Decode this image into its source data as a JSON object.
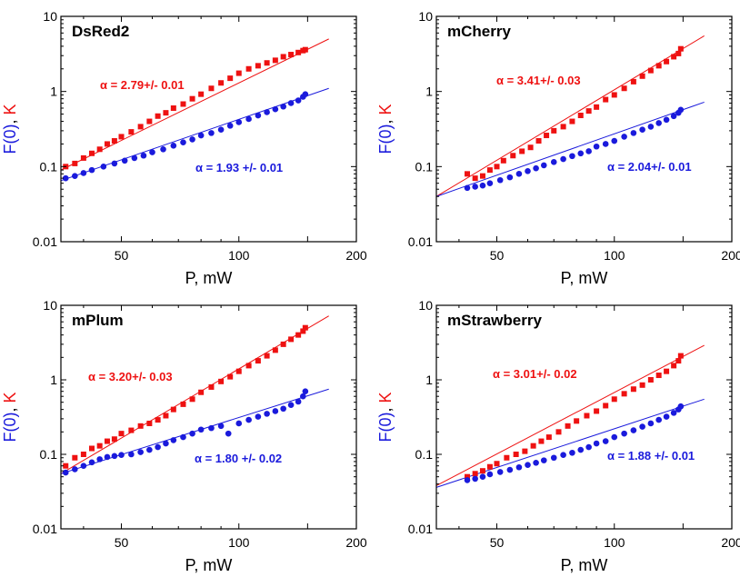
{
  "colors": {
    "k_series": "#ee1111",
    "f0_series": "#1a1adc",
    "axis": "#000000"
  },
  "chart_data": [
    {
      "type": "scatter",
      "title": "DsRed2",
      "xlabel": "P, mW",
      "ylabel_parts": [
        "F(0)",
        ", ",
        "K"
      ],
      "xscale": "log",
      "yscale": "log",
      "xlim": [
        35,
        200
      ],
      "ylim": [
        0.01,
        10
      ],
      "xticks": [
        50,
        100,
        150,
        200
      ],
      "xtick_labels": [
        "50",
        "100",
        "",
        "200"
      ],
      "yticks": [
        0.01,
        0.1,
        1,
        10
      ],
      "ytick_labels": [
        "0.01",
        "0.1",
        "1",
        "10"
      ],
      "grid": false,
      "series": [
        {
          "name": "K",
          "marker": "square",
          "slope_label": "α = 2.79+/- 0.01",
          "fit": {
            "x": [
              35,
              170
            ],
            "y": [
              0.09,
              5.0
            ]
          },
          "x": [
            36,
            38,
            40,
            42,
            44,
            46,
            48,
            50,
            53,
            56,
            59,
            62,
            65,
            68,
            72,
            76,
            80,
            85,
            90,
            95,
            100,
            106,
            112,
            118,
            124,
            130,
            136,
            142,
            146,
            148
          ],
          "y": [
            0.1,
            0.11,
            0.13,
            0.15,
            0.17,
            0.2,
            0.22,
            0.25,
            0.29,
            0.34,
            0.4,
            0.47,
            0.52,
            0.6,
            0.68,
            0.8,
            0.92,
            1.1,
            1.3,
            1.5,
            1.75,
            2.0,
            2.2,
            2.4,
            2.6,
            2.9,
            3.1,
            3.3,
            3.5,
            3.6
          ]
        },
        {
          "name": "F(0)",
          "marker": "circle",
          "slope_label": "α = 1.93 +/- 0.01",
          "fit": {
            "x": [
              35,
              170
            ],
            "y": [
              0.065,
              1.1
            ]
          },
          "x": [
            36,
            38,
            40,
            42,
            45,
            48,
            51,
            54,
            57,
            60,
            64,
            68,
            72,
            76,
            80,
            85,
            90,
            95,
            100,
            106,
            112,
            118,
            124,
            130,
            136,
            142,
            146,
            148
          ],
          "y": [
            0.07,
            0.075,
            0.082,
            0.09,
            0.1,
            0.11,
            0.12,
            0.13,
            0.14,
            0.155,
            0.17,
            0.19,
            0.21,
            0.23,
            0.26,
            0.28,
            0.31,
            0.35,
            0.39,
            0.43,
            0.48,
            0.53,
            0.58,
            0.63,
            0.7,
            0.76,
            0.85,
            0.92
          ]
        }
      ]
    },
    {
      "type": "scatter",
      "title": "mCherry",
      "xlabel": "P, mW",
      "ylabel_parts": [
        "F(0)",
        ", ",
        "K"
      ],
      "xscale": "log",
      "yscale": "log",
      "xlim": [
        35,
        200
      ],
      "ylim": [
        0.01,
        10
      ],
      "xticks": [
        50,
        100,
        150,
        200
      ],
      "xtick_labels": [
        "50",
        "100",
        "",
        "200"
      ],
      "yticks": [
        0.01,
        0.1,
        1,
        10
      ],
      "ytick_labels": [
        "0.01",
        "0.1",
        "1",
        "10"
      ],
      "grid": false,
      "series": [
        {
          "name": "K",
          "marker": "square",
          "slope_label": "α = 3.41+/- 0.03",
          "fit": {
            "x": [
              35,
              170
            ],
            "y": [
              0.04,
              5.5
            ]
          },
          "x": [
            42,
            44,
            46,
            48,
            50,
            52,
            55,
            58,
            61,
            64,
            67,
            70,
            74,
            78,
            82,
            86,
            90,
            95,
            100,
            106,
            112,
            118,
            124,
            130,
            136,
            142,
            146,
            148
          ],
          "y": [
            0.08,
            0.07,
            0.075,
            0.09,
            0.1,
            0.12,
            0.14,
            0.16,
            0.18,
            0.22,
            0.26,
            0.3,
            0.34,
            0.4,
            0.48,
            0.55,
            0.62,
            0.78,
            0.9,
            1.1,
            1.35,
            1.6,
            1.9,
            2.2,
            2.5,
            2.9,
            3.2,
            3.7
          ]
        },
        {
          "name": "F(0)",
          "marker": "circle",
          "slope_label": "α = 2.04+/- 0.01",
          "fit": {
            "x": [
              35,
              170
            ],
            "y": [
              0.04,
              0.72
            ]
          },
          "x": [
            42,
            44,
            46,
            48,
            51,
            54,
            57,
            60,
            63,
            66,
            70,
            74,
            78,
            82,
            86,
            90,
            95,
            100,
            106,
            112,
            118,
            124,
            130,
            136,
            142,
            146,
            148
          ],
          "y": [
            0.052,
            0.054,
            0.056,
            0.06,
            0.066,
            0.072,
            0.08,
            0.087,
            0.095,
            0.104,
            0.115,
            0.126,
            0.138,
            0.15,
            0.16,
            0.185,
            0.2,
            0.22,
            0.25,
            0.28,
            0.31,
            0.34,
            0.38,
            0.42,
            0.47,
            0.52,
            0.57
          ]
        }
      ]
    },
    {
      "type": "scatter",
      "title": "mPlum",
      "xlabel": "P, mW",
      "ylabel_parts": [
        "F(0)",
        ", ",
        "K"
      ],
      "xscale": "log",
      "yscale": "log",
      "xlim": [
        35,
        200
      ],
      "ylim": [
        0.01,
        10
      ],
      "xticks": [
        50,
        100,
        150,
        200
      ],
      "xtick_labels": [
        "50",
        "100",
        "",
        "200"
      ],
      "yticks": [
        0.01,
        0.1,
        1,
        10
      ],
      "ytick_labels": [
        "0.01",
        "0.1",
        "1",
        "10"
      ],
      "grid": false,
      "series": [
        {
          "name": "K",
          "marker": "square",
          "slope_label": "α = 3.20+/- 0.03",
          "fit": {
            "x": [
              35,
              170
            ],
            "y": [
              0.055,
              7.2
            ]
          },
          "x": [
            36,
            38,
            40,
            42,
            44,
            46,
            48,
            50,
            53,
            56,
            59,
            62,
            65,
            68,
            72,
            76,
            80,
            85,
            90,
            95,
            100,
            106,
            112,
            118,
            124,
            130,
            136,
            142,
            146,
            148
          ],
          "y": [
            0.07,
            0.09,
            0.1,
            0.12,
            0.13,
            0.15,
            0.16,
            0.19,
            0.21,
            0.24,
            0.26,
            0.29,
            0.33,
            0.4,
            0.47,
            0.55,
            0.68,
            0.8,
            0.95,
            1.1,
            1.3,
            1.55,
            1.8,
            2.1,
            2.5,
            3.0,
            3.5,
            4.0,
            4.5,
            5.0
          ]
        },
        {
          "name": "F(0)",
          "marker": "circle",
          "slope_label": "α = 1.80 +/- 0.02",
          "fit": {
            "x": [
              35,
              170
            ],
            "y": [
              0.055,
              0.75
            ]
          },
          "x": [
            36,
            38,
            40,
            42,
            44,
            46,
            48,
            50,
            53,
            56,
            59,
            62,
            65,
            68,
            72,
            76,
            80,
            85,
            90,
            94,
            100,
            106,
            112,
            118,
            124,
            130,
            136,
            142,
            146,
            148
          ],
          "y": [
            0.057,
            0.063,
            0.07,
            0.078,
            0.086,
            0.092,
            0.095,
            0.098,
            0.1,
            0.107,
            0.115,
            0.125,
            0.14,
            0.155,
            0.17,
            0.19,
            0.215,
            0.225,
            0.24,
            0.19,
            0.26,
            0.29,
            0.32,
            0.35,
            0.38,
            0.41,
            0.46,
            0.51,
            0.6,
            0.7
          ]
        }
      ]
    },
    {
      "type": "scatter",
      "title": "mStrawberry",
      "xlabel": "P, mW",
      "ylabel_parts": [
        "F(0)",
        ", ",
        "K"
      ],
      "xscale": "log",
      "yscale": "log",
      "xlim": [
        35,
        200
      ],
      "ylim": [
        0.01,
        10
      ],
      "xticks": [
        50,
        100,
        150,
        200
      ],
      "xtick_labels": [
        "50",
        "100",
        "",
        "200"
      ],
      "yticks": [
        0.01,
        0.1,
        1,
        10
      ],
      "ytick_labels": [
        "0.01",
        "0.1",
        "1",
        "10"
      ],
      "grid": false,
      "series": [
        {
          "name": "K",
          "marker": "square",
          "slope_label": "α = 3.01+/- 0.02",
          "fit": {
            "x": [
              35,
              170
            ],
            "y": [
              0.038,
              2.9
            ]
          },
          "x": [
            42,
            44,
            46,
            48,
            50,
            53,
            56,
            59,
            62,
            65,
            68,
            72,
            76,
            80,
            85,
            90,
            95,
            100,
            106,
            112,
            118,
            124,
            130,
            136,
            142,
            146,
            148
          ],
          "y": [
            0.05,
            0.055,
            0.06,
            0.068,
            0.075,
            0.09,
            0.1,
            0.11,
            0.13,
            0.15,
            0.17,
            0.2,
            0.24,
            0.28,
            0.33,
            0.38,
            0.45,
            0.55,
            0.65,
            0.75,
            0.85,
            1.0,
            1.15,
            1.3,
            1.55,
            1.8,
            2.1
          ]
        },
        {
          "name": "F(0)",
          "marker": "circle",
          "slope_label": "α = 1.88 +/- 0.01",
          "fit": {
            "x": [
              35,
              170
            ],
            "y": [
              0.036,
              0.55
            ]
          },
          "x": [
            42,
            44,
            46,
            48,
            51,
            54,
            57,
            60,
            63,
            66,
            70,
            74,
            78,
            82,
            86,
            90,
            95,
            100,
            106,
            112,
            118,
            124,
            130,
            136,
            142,
            146,
            148
          ],
          "y": [
            0.045,
            0.047,
            0.05,
            0.054,
            0.058,
            0.062,
            0.067,
            0.072,
            0.077,
            0.083,
            0.09,
            0.098,
            0.105,
            0.115,
            0.125,
            0.14,
            0.15,
            0.17,
            0.19,
            0.21,
            0.235,
            0.26,
            0.29,
            0.32,
            0.36,
            0.4,
            0.44
          ]
        }
      ]
    }
  ]
}
